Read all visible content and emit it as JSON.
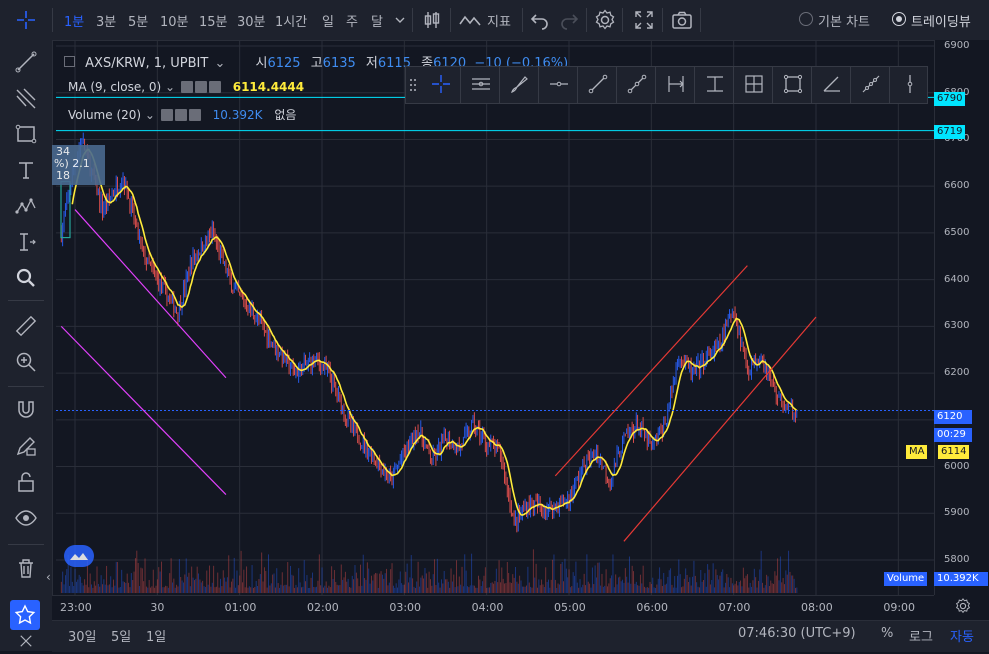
{
  "toolbar": {
    "intervals": [
      "1분",
      "3분",
      "5분",
      "10분",
      "15분",
      "30분",
      "1시간",
      "일",
      "주",
      "달"
    ],
    "active_interval": "1분",
    "indicators_label": "지표",
    "basic_chart_label": "기본 차트",
    "tradingview_label": "트레이딩뷰"
  },
  "legend": {
    "symbol": "AXS/KRW, 1, UPBIT",
    "open_key": "시",
    "open": "6125",
    "high_key": "고",
    "high": "6135",
    "low_key": "저",
    "low": "6115",
    "close_key": "종",
    "close": "6120",
    "change": "−10 (−0.16%)",
    "ma_label": "MA (9, close, 0)",
    "ma_value": "6114.4444",
    "volume_label": "Volume (20)",
    "volume_value": "10.392K",
    "volume_extra": "없음"
  },
  "price_axis": {
    "labels": [
      "6900",
      "6800",
      "6700",
      "6600",
      "6500",
      "6400",
      "6300",
      "6200",
      "6100",
      "6000",
      "5900",
      "5800"
    ],
    "line_6790": "6790",
    "line_6719": "6719",
    "last_price": "6120",
    "countdown": "00:29",
    "ma_tag": "MA",
    "ma_tag_value": "6114",
    "volume_tag": "Volume",
    "volume_tag_value": "10.392K"
  },
  "time_axis": {
    "labels": [
      "23:00",
      "30",
      "01:00",
      "02:00",
      "03:00",
      "04:00",
      "05:00",
      "06:00",
      "07:00",
      "08:00",
      "09:00"
    ]
  },
  "bottom_bar": {
    "ranges": [
      "30일",
      "5일",
      "1일"
    ],
    "clock": "07:46:30 (UTC+9)",
    "percent": "%",
    "log": "로그",
    "auto": "자동"
  },
  "left_overlay": {
    "line1": "34",
    "line2": "%) 2.1",
    "line3": "18"
  },
  "colors": {
    "background": "#131722",
    "up": "#2962ff",
    "down": "#ef5350",
    "ma": "#ffeb3b",
    "hline": "#00e5ff",
    "trend_magenta": "#e040fb",
    "channel_red": "#e53935",
    "accent": "#2962ff"
  },
  "chart_data": {
    "type": "candlestick",
    "symbol": "AXS/KRW",
    "interval": "1",
    "ylim": [
      5750,
      6920
    ],
    "x_range": [
      "22:45",
      "09:20"
    ],
    "price_path": [
      [
        "22:50",
        6500
      ],
      [
        "23:00",
        6650
      ],
      [
        "23:05",
        6700
      ],
      [
        "23:20",
        6550
      ],
      [
        "23:35",
        6620
      ],
      [
        "23:50",
        6450
      ],
      [
        "00:00",
        6400
      ],
      [
        "00:15",
        6330
      ],
      [
        "00:25",
        6440
      ],
      [
        "00:40",
        6500
      ],
      [
        "00:55",
        6380
      ],
      [
        "01:10",
        6330
      ],
      [
        "01:25",
        6260
      ],
      [
        "01:40",
        6200
      ],
      [
        "01:55",
        6230
      ],
      [
        "02:05",
        6200
      ],
      [
        "02:20",
        6090
      ],
      [
        "02:35",
        6030
      ],
      [
        "02:50",
        5970
      ],
      [
        "03:00",
        6030
      ],
      [
        "03:10",
        6080
      ],
      [
        "03:20",
        6010
      ],
      [
        "03:30",
        6060
      ],
      [
        "03:40",
        6040
      ],
      [
        "03:50",
        6090
      ],
      [
        "04:00",
        6050
      ],
      [
        "04:10",
        6030
      ],
      [
        "04:20",
        5880
      ],
      [
        "04:30",
        5920
      ],
      [
        "04:45",
        5910
      ],
      [
        "05:00",
        5930
      ],
      [
        "05:10",
        6000
      ],
      [
        "05:20",
        6030
      ],
      [
        "05:30",
        5970
      ],
      [
        "05:40",
        6060
      ],
      [
        "05:50",
        6090
      ],
      [
        "06:00",
        6040
      ],
      [
        "06:10",
        6090
      ],
      [
        "06:20",
        6240
      ],
      [
        "06:30",
        6200
      ],
      [
        "06:40",
        6230
      ],
      [
        "06:50",
        6260
      ],
      [
        "07:00",
        6340
      ],
      [
        "07:10",
        6210
      ],
      [
        "07:20",
        6240
      ],
      [
        "07:30",
        6160
      ],
      [
        "07:40",
        6120
      ],
      [
        "07:46",
        6120
      ]
    ],
    "ma_period": 9,
    "horizontal_lines": [
      6790,
      6719
    ],
    "last_price": 6120,
    "ma_last": 6114.4444,
    "trend_lines": [
      {
        "color": "magenta",
        "from": [
          "23:00",
          6550
        ],
        "to": [
          "00:50",
          6190
        ]
      },
      {
        "color": "magenta",
        "from": [
          "22:50",
          6300
        ],
        "to": [
          "00:50",
          5940
        ]
      },
      {
        "color": "red",
        "from": [
          "04:50",
          5980
        ],
        "to": [
          "07:10",
          6430
        ]
      },
      {
        "color": "red",
        "from": [
          "05:40",
          5840
        ],
        "to": [
          "08:00",
          6320
        ]
      }
    ],
    "volume_last": "10.392K"
  }
}
